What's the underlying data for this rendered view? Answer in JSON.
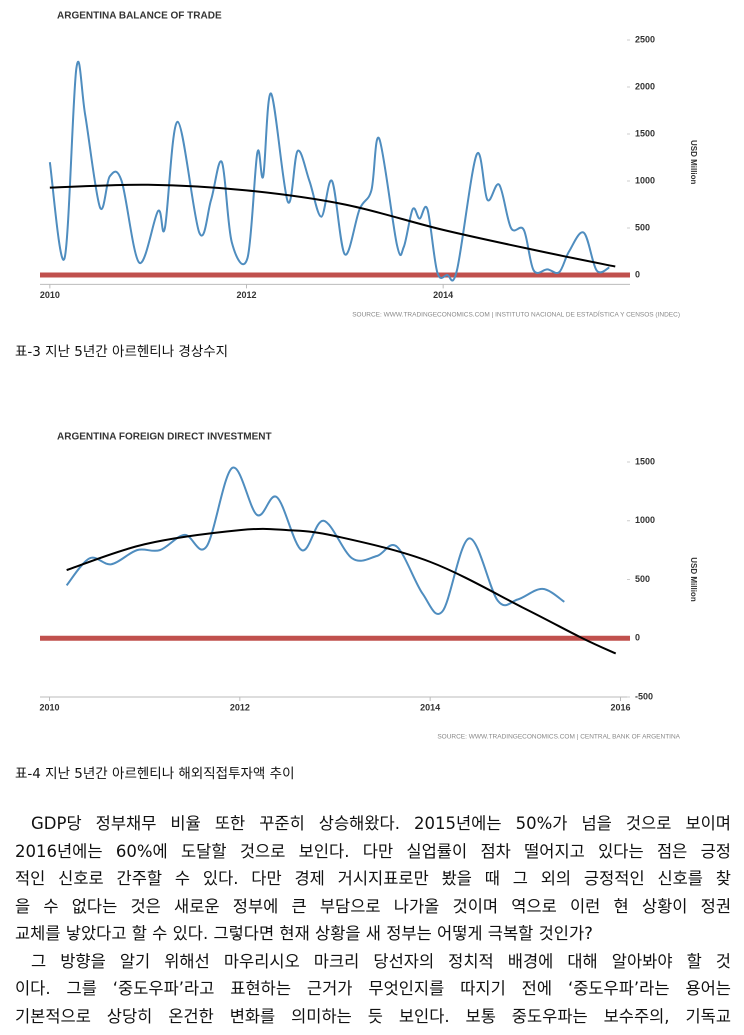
{
  "chart_data": [
    {
      "type": "line",
      "title": "ARGENTINA BALANCE OF TRADE",
      "y_label": "USD Million",
      "source": "SOURCE: WWW.TRADINGECONOMICS.COM | INSTITUTO NACIONAL DE ESTADÍSTICA Y CENSOS (INDEC)",
      "xlim": [
        2009.9,
        2015.9
      ],
      "xticks": [
        2010,
        2012,
        2014
      ],
      "ylim": [
        -100,
        2500
      ],
      "yticks": [
        0,
        500,
        1000,
        1500,
        2000,
        2500
      ],
      "hline": {
        "value": 0,
        "color": "#c0504d"
      },
      "series": [
        {
          "color": "#4f8dbf",
          "x": [
            2010.0,
            2010.15,
            2010.27,
            2010.36,
            2010.51,
            2010.61,
            2010.73,
            2010.91,
            2011.1,
            2011.17,
            2011.3,
            2011.52,
            2011.64,
            2011.75,
            2011.85,
            2012.01,
            2012.11,
            2012.17,
            2012.25,
            2012.42,
            2012.52,
            2012.64,
            2012.76,
            2012.87,
            2013.0,
            2013.15,
            2013.27,
            2013.35,
            2013.53,
            2013.6,
            2013.69,
            2013.76,
            2013.84,
            2013.94,
            2014.04,
            2014.14,
            2014.34,
            2014.45,
            2014.57,
            2014.69,
            2014.82,
            2014.92,
            2015.06,
            2015.18,
            2015.28,
            2015.43,
            2015.56,
            2015.69
          ],
          "values": [
            1200,
            180,
            2200,
            1700,
            720,
            1050,
            1000,
            130,
            680,
            500,
            1630,
            450,
            800,
            1200,
            350,
            180,
            1300,
            1050,
            1930,
            780,
            1320,
            1000,
            620,
            1000,
            220,
            700,
            900,
            1450,
            320,
            300,
            700,
            600,
            700,
            30,
            0,
            50,
            1280,
            800,
            960,
            500,
            480,
            50,
            60,
            30,
            250,
            450,
            50,
            80
          ]
        },
        {
          "color": "#000000",
          "x": [
            2010.0,
            2011.0,
            2012.0,
            2013.0,
            2014.0,
            2015.0,
            2015.75
          ],
          "values": [
            930,
            960,
            900,
            750,
            480,
            250,
            90
          ]
        }
      ]
    },
    {
      "type": "line",
      "title": "ARGENTINA FOREIGN DIRECT INVESTMENT",
      "y_label": "USD Million",
      "source": "SOURCE: WWW.TRADINGECONOMICS.COM | CENTRAL BANK OF ARGENTINA",
      "xlim": [
        2009.9,
        2016.1
      ],
      "xticks": [
        2010,
        2012,
        2014,
        2016
      ],
      "ylim": [
        -500,
        1500
      ],
      "yticks": [
        -500,
        0,
        500,
        1000,
        1500
      ],
      "hline": {
        "value": 0,
        "color": "#c0504d"
      },
      "series": [
        {
          "color": "#4f8dbf",
          "x": [
            2010.18,
            2010.42,
            2010.65,
            2010.92,
            2011.16,
            2011.42,
            2011.65,
            2011.92,
            2012.18,
            2012.39,
            2012.65,
            2012.88,
            2013.18,
            2013.44,
            2013.65,
            2013.92,
            2014.13,
            2014.41,
            2014.71,
            2014.92,
            2015.18,
            2015.41
          ],
          "values": [
            450,
            680,
            630,
            750,
            750,
            880,
            780,
            1450,
            1050,
            1200,
            750,
            1000,
            680,
            700,
            780,
            380,
            230,
            850,
            320,
            330,
            420,
            310
          ]
        },
        {
          "color": "#000000",
          "x": [
            2010.18,
            2011.0,
            2012.0,
            2012.5,
            2013.0,
            2014.0,
            2015.0,
            2015.6,
            2015.95
          ],
          "values": [
            580,
            800,
            920,
            920,
            870,
            650,
            250,
            0,
            -130
          ]
        }
      ]
    }
  ],
  "captions": [
    "표-3 지난 5년간 아르헨티나 경상수지",
    "표-4 지난 5년간 아르헨티나 해외직접투자액 추이"
  ],
  "paragraphs": [
    [
      "GDP당 정부채무 비율 또한 꾸준히 상승해왔다. 2015년에는 50%가 넘을 것으로 보이며",
      "2016년에는 60%에 도달할 것으로 보인다. 다만 실업률이 점차 떨어지고 있다는 점은 긍정",
      "적인 신호로 간주할 수 있다. 다만 경제 거시지표로만 봤을 때 그 외의 긍정적인 신호를 찾",
      "을 수 없다는 것은 새로운 정부에 큰 부담으로 나가올 것이며 역으로 이런 현 상황이 정권",
      "교체를 낳았다고 할 수 있다. 그렇다면 현재 상황을 새 정부는 어떻게 극복할 것인가?"
    ],
    [
      "그 방향을 알기 위해선 마우리시오 마크리 당선자의 정치적 배경에 대해 알아봐야 할 것",
      "이다. 그를 ‘중도우파’라고 표현하는 근거가 무엇인지를 따지기 전에 ‘중도우파’라는 용어는",
      "기본적으로 상당히 온건한 변화를 의미하는 듯 보인다. 보통 중도우파는 보수주의, 기독교"
    ]
  ]
}
